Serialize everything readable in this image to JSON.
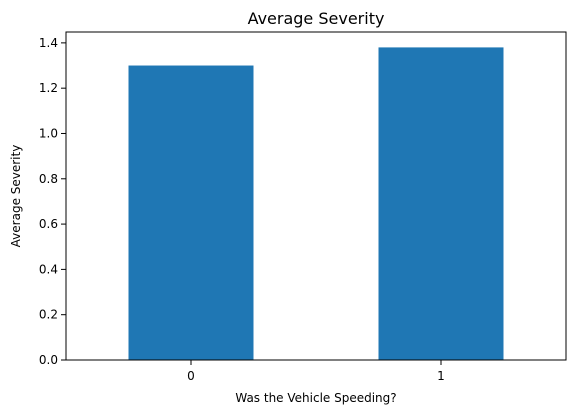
{
  "chart_data": {
    "type": "bar",
    "title": "Average Severity",
    "xlabel": "Was the Vehicle Speeding?",
    "ylabel": "Average Severity",
    "categories": [
      "0",
      "1"
    ],
    "values": [
      1.3,
      1.38
    ],
    "ylim": [
      0,
      1.448
    ],
    "yticks": [
      0.0,
      0.2,
      0.4,
      0.6,
      0.8,
      1.0,
      1.2,
      1.4
    ],
    "ytick_labels": [
      "0.0",
      "0.2",
      "0.4",
      "0.6",
      "0.8",
      "1.0",
      "1.2",
      "1.4"
    ],
    "bar_color": "#1f77b4",
    "grid": false,
    "legend": "none"
  }
}
